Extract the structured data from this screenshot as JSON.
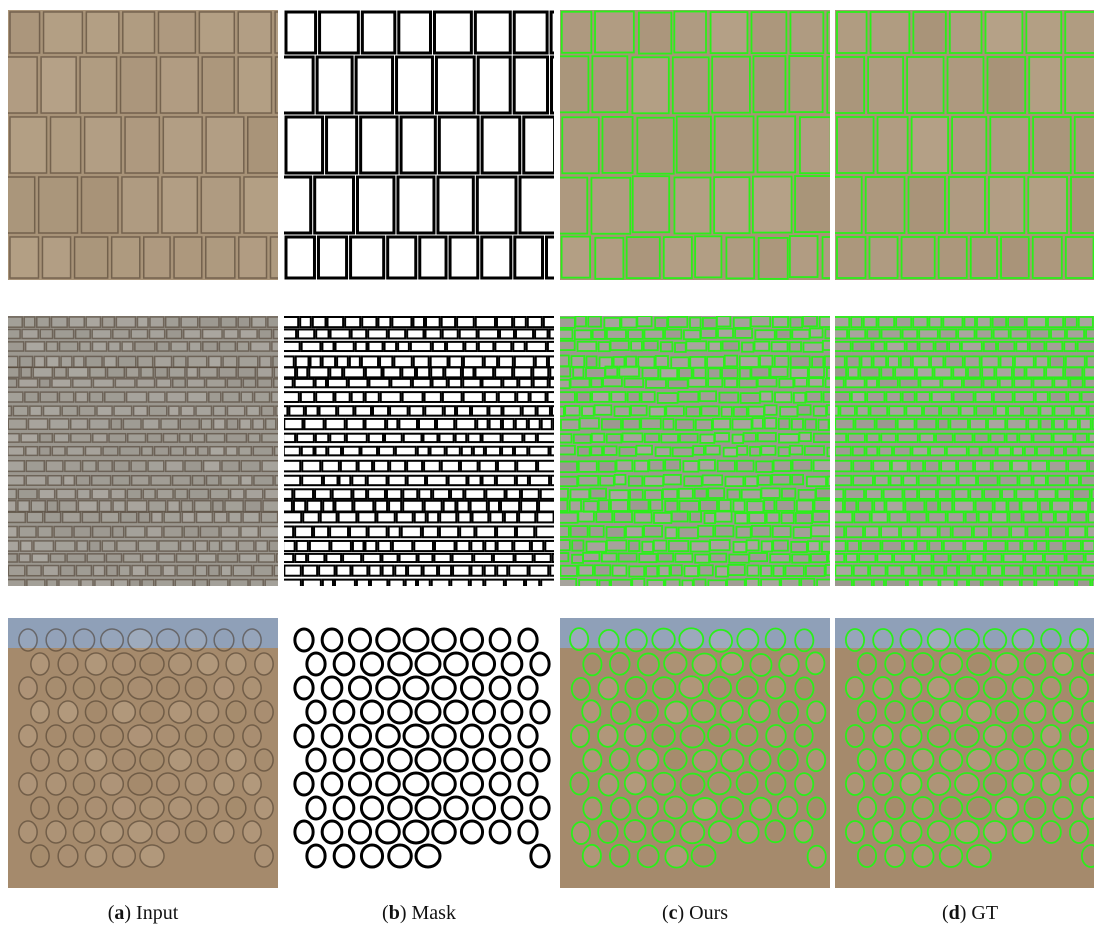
{
  "figure": {
    "captions": [
      {
        "open": "(",
        "tag": "a",
        "rest": ") Input"
      },
      {
        "open": "(",
        "tag": "b",
        "rest": ") Mask"
      },
      {
        "open": "(",
        "tag": "c",
        "rest": ") Ours"
      },
      {
        "open": "(",
        "tag": "d",
        "rest": ") GT"
      }
    ]
  }
}
